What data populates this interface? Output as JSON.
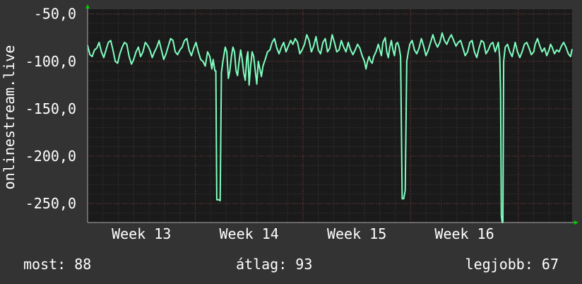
{
  "colors": {
    "background": "#333333",
    "plot_background": "#1a1a1a",
    "grid_major": "#5a2a2a",
    "grid_minor": "#3c3c3c",
    "line": "#7fffbf",
    "axis_arrow": "#00cc00",
    "text": "#ffffff"
  },
  "stats": {
    "now": "most: 88",
    "avg": "átlag: 93",
    "best": "legjobb: 67"
  },
  "chart_data": {
    "type": "line",
    "title": "",
    "ylabel": "onlinestream.live",
    "xlabel": "",
    "ylim": [
      -270,
      -45
    ],
    "yticks": [
      -50,
      -100,
      -150,
      -200,
      -250
    ],
    "ytick_labels": [
      "-50,0",
      "-100,0",
      "-150,0",
      "-200,0",
      "-250,0"
    ],
    "xlim": [
      0,
      31.5
    ],
    "xticks": [
      {
        "label": "Week 13",
        "x": 3.5
      },
      {
        "label": "Week 14",
        "x": 10.5
      },
      {
        "label": "Week 15",
        "x": 17.5
      },
      {
        "label": "Week 16",
        "x": 24.5
      }
    ],
    "grid": true,
    "series": [
      {
        "values": [
          [
            0.0,
            -83
          ],
          [
            0.15,
            -93
          ],
          [
            0.3,
            -95
          ],
          [
            0.45,
            -88
          ],
          [
            0.6,
            -86
          ],
          [
            0.75,
            -80
          ],
          [
            0.9,
            -90
          ],
          [
            1.05,
            -96
          ],
          [
            1.2,
            -88
          ],
          [
            1.35,
            -80
          ],
          [
            1.5,
            -78
          ],
          [
            1.65,
            -88
          ],
          [
            1.8,
            -100
          ],
          [
            1.95,
            -102
          ],
          [
            2.1,
            -92
          ],
          [
            2.25,
            -85
          ],
          [
            2.4,
            -80
          ],
          [
            2.55,
            -82
          ],
          [
            2.7,
            -95
          ],
          [
            2.85,
            -103
          ],
          [
            3.0,
            -98
          ],
          [
            3.15,
            -90
          ],
          [
            3.3,
            -85
          ],
          [
            3.45,
            -95
          ],
          [
            3.6,
            -90
          ],
          [
            3.75,
            -80
          ],
          [
            3.9,
            -83
          ],
          [
            4.05,
            -88
          ],
          [
            4.2,
            -96
          ],
          [
            4.35,
            -90
          ],
          [
            4.5,
            -85
          ],
          [
            4.65,
            -78
          ],
          [
            4.8,
            -88
          ],
          [
            4.95,
            -98
          ],
          [
            5.1,
            -92
          ],
          [
            5.25,
            -84
          ],
          [
            5.4,
            -76
          ],
          [
            5.55,
            -78
          ],
          [
            5.7,
            -90
          ],
          [
            5.85,
            -93
          ],
          [
            6.0,
            -88
          ],
          [
            6.15,
            -85
          ],
          [
            6.3,
            -78
          ],
          [
            6.45,
            -76
          ],
          [
            6.6,
            -88
          ],
          [
            6.75,
            -94
          ],
          [
            6.9,
            -86
          ],
          [
            7.05,
            -80
          ],
          [
            7.2,
            -90
          ],
          [
            7.35,
            -98
          ],
          [
            7.5,
            -100
          ],
          [
            7.65,
            -105
          ],
          [
            7.8,
            -90
          ],
          [
            7.95,
            -95
          ],
          [
            8.0,
            -100
          ],
          [
            8.08,
            -108
          ],
          [
            8.16,
            -98
          ],
          [
            8.28,
            -110
          ],
          [
            8.34,
            -110
          ],
          [
            8.4,
            -246
          ],
          [
            8.55,
            -246
          ],
          [
            8.62,
            -247
          ],
          [
            8.7,
            -112
          ],
          [
            8.8,
            -100
          ],
          [
            8.95,
            -85
          ],
          [
            9.05,
            -90
          ],
          [
            9.15,
            -118
          ],
          [
            9.25,
            -110
          ],
          [
            9.35,
            -95
          ],
          [
            9.45,
            -85
          ],
          [
            9.55,
            -90
          ],
          [
            9.65,
            -110
          ],
          [
            9.75,
            -115
          ],
          [
            9.85,
            -100
          ],
          [
            9.95,
            -88
          ],
          [
            10.05,
            -98
          ],
          [
            10.15,
            -112
          ],
          [
            10.25,
            -120
          ],
          [
            10.35,
            -96
          ],
          [
            10.42,
            -90
          ],
          [
            10.5,
            -125
          ],
          [
            10.6,
            -105
          ],
          [
            10.7,
            -90
          ],
          [
            10.8,
            -95
          ],
          [
            10.9,
            -110
          ],
          [
            11.0,
            -124
          ],
          [
            11.1,
            -100
          ],
          [
            11.2,
            -108
          ],
          [
            11.3,
            -116
          ],
          [
            11.4,
            -105
          ],
          [
            11.55,
            -98
          ],
          [
            11.7,
            -90
          ],
          [
            11.85,
            -88
          ],
          [
            12.0,
            -80
          ],
          [
            12.15,
            -76
          ],
          [
            12.3,
            -86
          ],
          [
            12.45,
            -92
          ],
          [
            12.6,
            -85
          ],
          [
            12.75,
            -80
          ],
          [
            12.9,
            -90
          ],
          [
            13.05,
            -84
          ],
          [
            13.2,
            -78
          ],
          [
            13.35,
            -82
          ],
          [
            13.5,
            -76
          ],
          [
            13.65,
            -80
          ],
          [
            13.8,
            -92
          ],
          [
            13.95,
            -88
          ],
          [
            14.1,
            -82
          ],
          [
            14.25,
            -72
          ],
          [
            14.4,
            -78
          ],
          [
            14.55,
            -90
          ],
          [
            14.7,
            -84
          ],
          [
            14.85,
            -74
          ],
          [
            15.0,
            -88
          ],
          [
            15.15,
            -92
          ],
          [
            15.3,
            -80
          ],
          [
            15.45,
            -76
          ],
          [
            15.6,
            -90
          ],
          [
            15.75,
            -86
          ],
          [
            15.9,
            -72
          ],
          [
            16.05,
            -80
          ],
          [
            16.2,
            -90
          ],
          [
            16.35,
            -88
          ],
          [
            16.5,
            -78
          ],
          [
            16.65,
            -85
          ],
          [
            16.8,
            -90
          ],
          [
            16.95,
            -80
          ],
          [
            17.1,
            -88
          ],
          [
            17.25,
            -93
          ],
          [
            17.4,
            -88
          ],
          [
            17.55,
            -82
          ],
          [
            17.7,
            -86
          ],
          [
            17.85,
            -94
          ],
          [
            18.0,
            -100
          ],
          [
            18.1,
            -108
          ],
          [
            18.2,
            -100
          ],
          [
            18.3,
            -95
          ],
          [
            18.4,
            -100
          ],
          [
            18.5,
            -102
          ],
          [
            18.6,
            -95
          ],
          [
            18.75,
            -90
          ],
          [
            18.9,
            -82
          ],
          [
            19.0,
            -88
          ],
          [
            19.1,
            -94
          ],
          [
            19.2,
            -80
          ],
          [
            19.35,
            -75
          ],
          [
            19.45,
            -90
          ],
          [
            19.55,
            -96
          ],
          [
            19.65,
            -85
          ],
          [
            19.75,
            -78
          ],
          [
            19.85,
            -88
          ],
          [
            19.95,
            -94
          ],
          [
            20.05,
            -82
          ],
          [
            20.15,
            -80
          ],
          [
            20.25,
            -85
          ],
          [
            20.35,
            -95
          ],
          [
            20.45,
            -245
          ],
          [
            20.55,
            -245
          ],
          [
            20.65,
            -236
          ],
          [
            20.75,
            -100
          ],
          [
            20.85,
            -90
          ],
          [
            20.95,
            -82
          ],
          [
            21.1,
            -78
          ],
          [
            21.25,
            -88
          ],
          [
            21.4,
            -92
          ],
          [
            21.55,
            -86
          ],
          [
            21.7,
            -76
          ],
          [
            21.85,
            -84
          ],
          [
            22.0,
            -94
          ],
          [
            22.15,
            -88
          ],
          [
            22.3,
            -80
          ],
          [
            22.45,
            -72
          ],
          [
            22.6,
            -80
          ],
          [
            22.75,
            -85
          ],
          [
            22.9,
            -80
          ],
          [
            23.05,
            -70
          ],
          [
            23.2,
            -78
          ],
          [
            23.35,
            -82
          ],
          [
            23.5,
            -76
          ],
          [
            23.65,
            -72
          ],
          [
            23.8,
            -78
          ],
          [
            23.95,
            -84
          ],
          [
            24.1,
            -80
          ],
          [
            24.25,
            -78
          ],
          [
            24.4,
            -86
          ],
          [
            24.55,
            -94
          ],
          [
            24.7,
            -90
          ],
          [
            24.85,
            -80
          ],
          [
            25.0,
            -78
          ],
          [
            25.15,
            -90
          ],
          [
            25.3,
            -96
          ],
          [
            25.45,
            -86
          ],
          [
            25.6,
            -78
          ],
          [
            25.75,
            -80
          ],
          [
            25.9,
            -92
          ],
          [
            26.05,
            -88
          ],
          [
            26.2,
            -82
          ],
          [
            26.35,
            -80
          ],
          [
            26.5,
            -90
          ],
          [
            26.6,
            -85
          ],
          [
            26.7,
            -80
          ],
          [
            26.8,
            -96
          ],
          [
            26.85,
            -132
          ],
          [
            26.9,
            -262
          ],
          [
            26.95,
            -270
          ],
          [
            27.0,
            -275
          ],
          [
            27.05,
            -100
          ],
          [
            27.15,
            -85
          ],
          [
            27.3,
            -82
          ],
          [
            27.45,
            -90
          ],
          [
            27.6,
            -95
          ],
          [
            27.7,
            -88
          ],
          [
            27.8,
            -80
          ],
          [
            27.95,
            -90
          ],
          [
            28.1,
            -96
          ],
          [
            28.25,
            -90
          ],
          [
            28.4,
            -82
          ],
          [
            28.55,
            -80
          ],
          [
            28.7,
            -86
          ],
          [
            28.85,
            -93
          ],
          [
            29.0,
            -90
          ],
          [
            29.1,
            -82
          ],
          [
            29.25,
            -76
          ],
          [
            29.4,
            -84
          ],
          [
            29.55,
            -90
          ],
          [
            29.7,
            -86
          ],
          [
            29.85,
            -94
          ],
          [
            30.0,
            -88
          ],
          [
            30.1,
            -82
          ],
          [
            30.2,
            -85
          ],
          [
            30.35,
            -92
          ],
          [
            30.5,
            -88
          ],
          [
            30.65,
            -90
          ],
          [
            30.8,
            -84
          ],
          [
            30.95,
            -80
          ],
          [
            31.1,
            -85
          ],
          [
            31.25,
            -92
          ],
          [
            31.4,
            -95
          ],
          [
            31.5,
            -87
          ]
        ]
      }
    ]
  }
}
